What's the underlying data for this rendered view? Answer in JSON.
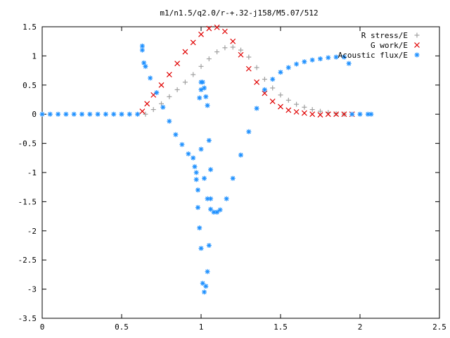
{
  "chart_data": {
    "type": "scatter",
    "title": "m1/n1.5/q2.0/r-+.32-j158/M5.07/512",
    "xlabel": "",
    "ylabel": "",
    "xlim": [
      0,
      2.5
    ],
    "ylim": [
      -3.5,
      1.5
    ],
    "xticks": [
      "0",
      "0.5",
      "1",
      "1.5",
      "2",
      "2.5"
    ],
    "yticks": [
      "1.5",
      "1",
      "0.5",
      "0",
      "-0.5",
      "-1",
      "-1.5",
      "-2",
      "-2.5",
      "-3",
      "-3.5"
    ],
    "grid": false,
    "legend_position": "top-right",
    "series": [
      {
        "name": "R stress/E",
        "marker": "+",
        "color": "#a0a0a0",
        "x": [
          0.65,
          0.7,
          0.75,
          0.8,
          0.85,
          0.9,
          0.95,
          1.0,
          1.05,
          1.1,
          1.15,
          1.2,
          1.25,
          1.3,
          1.35,
          1.4,
          1.45,
          1.5,
          1.55,
          1.6,
          1.65,
          1.7,
          1.75,
          1.8,
          1.85,
          1.9
        ],
        "y": [
          0.0,
          0.08,
          0.18,
          0.3,
          0.42,
          0.55,
          0.68,
          0.82,
          0.95,
          1.07,
          1.14,
          1.15,
          1.1,
          0.98,
          0.8,
          0.6,
          0.45,
          0.33,
          0.24,
          0.17,
          0.12,
          0.08,
          0.05,
          0.03,
          0.01,
          0.0
        ]
      },
      {
        "name": "G work/E",
        "marker": "x",
        "color": "#e00000",
        "x": [
          0.63,
          0.66,
          0.7,
          0.75,
          0.8,
          0.85,
          0.9,
          0.95,
          1.0,
          1.05,
          1.1,
          1.15,
          1.2,
          1.25,
          1.3,
          1.35,
          1.4,
          1.45,
          1.5,
          1.55,
          1.6,
          1.65,
          1.7,
          1.75,
          1.8,
          1.85,
          1.9,
          1.95
        ],
        "y": [
          0.05,
          0.18,
          0.33,
          0.5,
          0.68,
          0.87,
          1.07,
          1.23,
          1.37,
          1.47,
          1.49,
          1.42,
          1.25,
          1.02,
          0.78,
          0.55,
          0.36,
          0.22,
          0.13,
          0.07,
          0.04,
          0.02,
          0.0,
          -0.01,
          0.0,
          0.0,
          0.0,
          0.0
        ]
      },
      {
        "name": "Acoustic flux/E",
        "marker": "*",
        "color": "#1e90ff",
        "x": [
          0.0,
          0.05,
          0.1,
          0.15,
          0.2,
          0.25,
          0.3,
          0.35,
          0.4,
          0.45,
          0.5,
          0.55,
          0.6,
          0.63,
          0.63,
          0.64,
          0.65,
          0.68,
          0.72,
          0.76,
          0.8,
          0.84,
          0.88,
          0.92,
          0.95,
          0.96,
          0.97,
          0.97,
          0.98,
          0.98,
          0.99,
          1.0,
          1.01,
          1.02,
          1.03,
          1.04,
          1.05,
          1.06,
          1.06,
          1.05,
          1.04,
          1.03,
          1.02,
          1.01,
          1.0,
          1.0,
          0.99,
          1.0,
          1.02,
          1.04,
          1.06,
          1.08,
          1.1,
          1.12,
          1.16,
          1.2,
          1.25,
          1.3,
          1.35,
          1.4,
          1.45,
          1.5,
          1.55,
          1.6,
          1.65,
          1.7,
          1.75,
          1.8,
          1.85,
          1.9,
          1.93,
          1.95,
          2.0,
          2.05,
          2.07
        ],
        "y": [
          0.0,
          0.0,
          0.0,
          0.0,
          0.0,
          0.0,
          0.0,
          0.0,
          0.0,
          0.0,
          0.0,
          0.0,
          0.0,
          1.17,
          1.1,
          0.88,
          0.82,
          0.62,
          0.37,
          0.12,
          -0.12,
          -0.35,
          -0.52,
          -0.68,
          -0.75,
          -0.9,
          -1.0,
          -1.12,
          -1.3,
          -1.6,
          -1.95,
          -2.3,
          -2.9,
          -3.05,
          -2.95,
          -2.7,
          -2.25,
          -1.45,
          -0.95,
          -0.45,
          0.15,
          0.3,
          0.45,
          0.55,
          0.55,
          0.42,
          0.28,
          -0.6,
          -1.1,
          -1.45,
          -1.63,
          -1.68,
          -1.68,
          -1.64,
          -1.45,
          -1.1,
          -0.7,
          -0.3,
          0.1,
          0.42,
          0.6,
          0.72,
          0.8,
          0.86,
          0.9,
          0.93,
          0.95,
          0.97,
          0.98,
          0.98,
          0.87,
          0.0,
          0.0,
          0.0,
          0.0
        ]
      }
    ]
  }
}
